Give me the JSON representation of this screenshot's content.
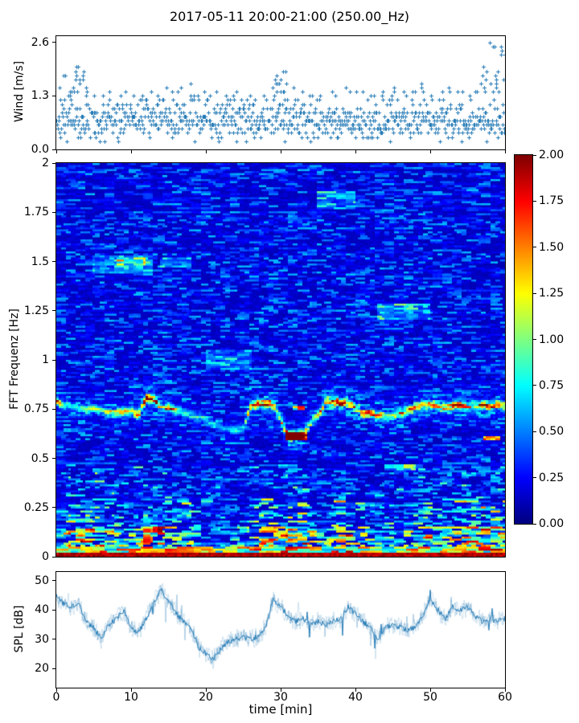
{
  "figure": {
    "title": "2017-05-11 20:00-21:00 (250.00_Hz)",
    "background": "#ffffff",
    "accent_blue": "#1f77b4"
  },
  "chart_data": [
    {
      "type": "scatter",
      "name": "wind-speed",
      "ylabel": "Wind [m/s]",
      "marker": "+",
      "color": "#1f77b4",
      "xlim": [
        0,
        60
      ],
      "ylim": [
        0,
        2.75
      ],
      "yticks": [
        "0.0",
        "1.3",
        "2.6"
      ],
      "ytick_values": [
        0,
        1.3,
        2.6
      ],
      "points_per_minute": 14,
      "band_low": 0.15,
      "band_high": 1.2,
      "quantize_step": 0.1,
      "minute_max": [
        1.5,
        1.8,
        2.0,
        1.9,
        1.4,
        1.3,
        1.25,
        1.45,
        1.3,
        1.35,
        1.3,
        1.25,
        1.45,
        1.25,
        1.5,
        1.35,
        1.5,
        1.55,
        1.3,
        1.35,
        1.3,
        1.45,
        1.25,
        1.3,
        1.45,
        1.3,
        1.15,
        1.25,
        1.5,
        1.75,
        1.9,
        1.5,
        1.35,
        1.25,
        1.3,
        1.25,
        1.35,
        1.3,
        1.5,
        1.35,
        1.45,
        1.3,
        1.25,
        1.4,
        1.3,
        1.5,
        1.4,
        1.35,
        1.55,
        1.35,
        1.3,
        1.35,
        1.5,
        1.35,
        1.45,
        1.3,
        1.6,
        2.0,
        2.6,
        2.5,
        2.15
      ]
    },
    {
      "type": "heatmap",
      "name": "fft-spectrogram",
      "ylabel": "FFT Frequenz [Hz]",
      "cmap": "jet",
      "clim": [
        0,
        2
      ],
      "xlim": [
        0,
        60
      ],
      "ylim": [
        0,
        2
      ],
      "yticks": [
        "2",
        "1.75",
        "1.5",
        "1.25",
        "1",
        "0.75",
        "0.5",
        "0.25",
        "0"
      ],
      "ytick_values": [
        2,
        1.75,
        1.5,
        1.25,
        1,
        0.75,
        0.5,
        0.25,
        0
      ],
      "colorbar_ticks": [
        "2.00",
        "1.75",
        "1.50",
        "1.25",
        "1.00",
        "0.75",
        "0.50",
        "0.25",
        "0.00"
      ],
      "colorbar_tick_values": [
        2,
        1.75,
        1.5,
        1.25,
        1,
        0.75,
        0.5,
        0.25,
        0
      ],
      "background_level": 0.15,
      "bottom_band_value": 1.95,
      "band_freq_hz": [
        0.79,
        0.77,
        0.76,
        0.75,
        0.75,
        0.75,
        0.74,
        0.73,
        0.73,
        0.73,
        0.74,
        0.72,
        0.8,
        0.8,
        0.76,
        0.76,
        0.74,
        0.73,
        0.72,
        0.71,
        0.7,
        0.68,
        0.66,
        0.65,
        0.64,
        0.65,
        0.77,
        0.77,
        0.78,
        0.77,
        0.7,
        0.61,
        0.61,
        0.62,
        0.68,
        0.72,
        0.785,
        0.785,
        0.78,
        0.785,
        0.76,
        0.73,
        0.73,
        0.72,
        0.71,
        0.72,
        0.73,
        0.74,
        0.76,
        0.77,
        0.77,
        0.76,
        0.76,
        0.77,
        0.77,
        0.76,
        0.77,
        0.77,
        0.76,
        0.77,
        0.76
      ],
      "band_intensity": [
        1.4,
        0.6,
        0.5,
        0.6,
        0.8,
        0.9,
        0.8,
        0.9,
        1.2,
        1.1,
        0.9,
        1.3,
        2.0,
        1.8,
        1.0,
        1.1,
        0.9,
        0.8,
        0.7,
        0.6,
        0.5,
        0.4,
        0.4,
        0.45,
        0.55,
        0.5,
        1.5,
        1.7,
        1.8,
        1.2,
        0.9,
        1.9,
        2.0,
        1.6,
        0.9,
        1.0,
        1.5,
        1.7,
        1.6,
        1.4,
        1.0,
        1.3,
        1.5,
        1.2,
        1.0,
        1.1,
        1.2,
        1.3,
        1.5,
        1.4,
        1.6,
        1.3,
        1.2,
        1.5,
        1.6,
        1.2,
        1.3,
        1.5,
        1.4,
        1.3,
        1.2
      ],
      "low_freq_activity": [
        0.5,
        0.6,
        0.8,
        0.9,
        0.8,
        0.9,
        0.8,
        0.7,
        0.8,
        0.7,
        0.6,
        0.7,
        0.9,
        0.8,
        0.9,
        0.8,
        0.7,
        0.7,
        0.6,
        0.4,
        0.4,
        0.3,
        0.4,
        0.4,
        0.5,
        0.4,
        0.6,
        0.8,
        0.9,
        0.9,
        0.8,
        0.9,
        0.8,
        0.8,
        0.7,
        0.6,
        0.6,
        0.7,
        0.9,
        0.9,
        0.8,
        0.7,
        0.6,
        0.4,
        0.4,
        0.5,
        0.5,
        0.6,
        0.7,
        0.7,
        0.8,
        0.8,
        0.7,
        0.8,
        0.8,
        0.9,
        0.9,
        0.9,
        0.9,
        0.9,
        0.8
      ],
      "features": [
        {
          "t": [
            30.5,
            33.5
          ],
          "f": [
            0.59,
            0.635
          ],
          "v": 1.9
        },
        {
          "t": [
            31.5,
            33.3
          ],
          "f": [
            0.74,
            0.765
          ],
          "v": 1.8
        },
        {
          "t": [
            57.0,
            59.5
          ],
          "f": [
            0.595,
            0.615
          ],
          "v": 1.5
        },
        {
          "t": [
            5,
            13
          ],
          "f": [
            1.44,
            1.53
          ],
          "v": 0.45
        },
        {
          "t": [
            8,
            12
          ],
          "f": [
            1.48,
            1.52
          ],
          "v": 0.6
        },
        {
          "t": [
            14,
            18
          ],
          "f": [
            1.47,
            1.52
          ],
          "v": 0.42
        },
        {
          "t": [
            43,
            50
          ],
          "f": [
            1.2,
            1.29
          ],
          "v": 0.5
        },
        {
          "t": [
            35,
            40
          ],
          "f": [
            1.77,
            1.86
          ],
          "v": 0.42
        },
        {
          "t": [
            20,
            26
          ],
          "f": [
            0.95,
            1.05
          ],
          "v": 0.35
        },
        {
          "t": [
            44,
            48
          ],
          "f": [
            0.44,
            0.47
          ],
          "v": 0.8
        }
      ]
    },
    {
      "type": "line",
      "name": "spl",
      "ylabel": "SPL [dB]",
      "xlabel": "time [min]",
      "color": "#1f77b4",
      "xlim": [
        0,
        60
      ],
      "ylim": [
        13.4,
        53
      ],
      "yticks": [
        "20",
        "30",
        "40",
        "50"
      ],
      "ytick_values": [
        20,
        30,
        40,
        50
      ],
      "xticks": [
        "0",
        "10",
        "20",
        "30",
        "40",
        "50",
        "60"
      ],
      "xtick_values": [
        0,
        10,
        20,
        30,
        40,
        50,
        60
      ],
      "noise_db": 2.5,
      "minute_mean_db": [
        45,
        42,
        41,
        42,
        36,
        34,
        30,
        35,
        37,
        40,
        34,
        32,
        37,
        42,
        47,
        43,
        39,
        36,
        34,
        27,
        25,
        23,
        27,
        29,
        30,
        31,
        30,
        31,
        34,
        44,
        41,
        38,
        36,
        37,
        35,
        36,
        35,
        36,
        37,
        41,
        39,
        36,
        34,
        30,
        34,
        35,
        34,
        33,
        34,
        38,
        44,
        40,
        37,
        41,
        40,
        41,
        38,
        36,
        37,
        36,
        37
      ]
    }
  ]
}
